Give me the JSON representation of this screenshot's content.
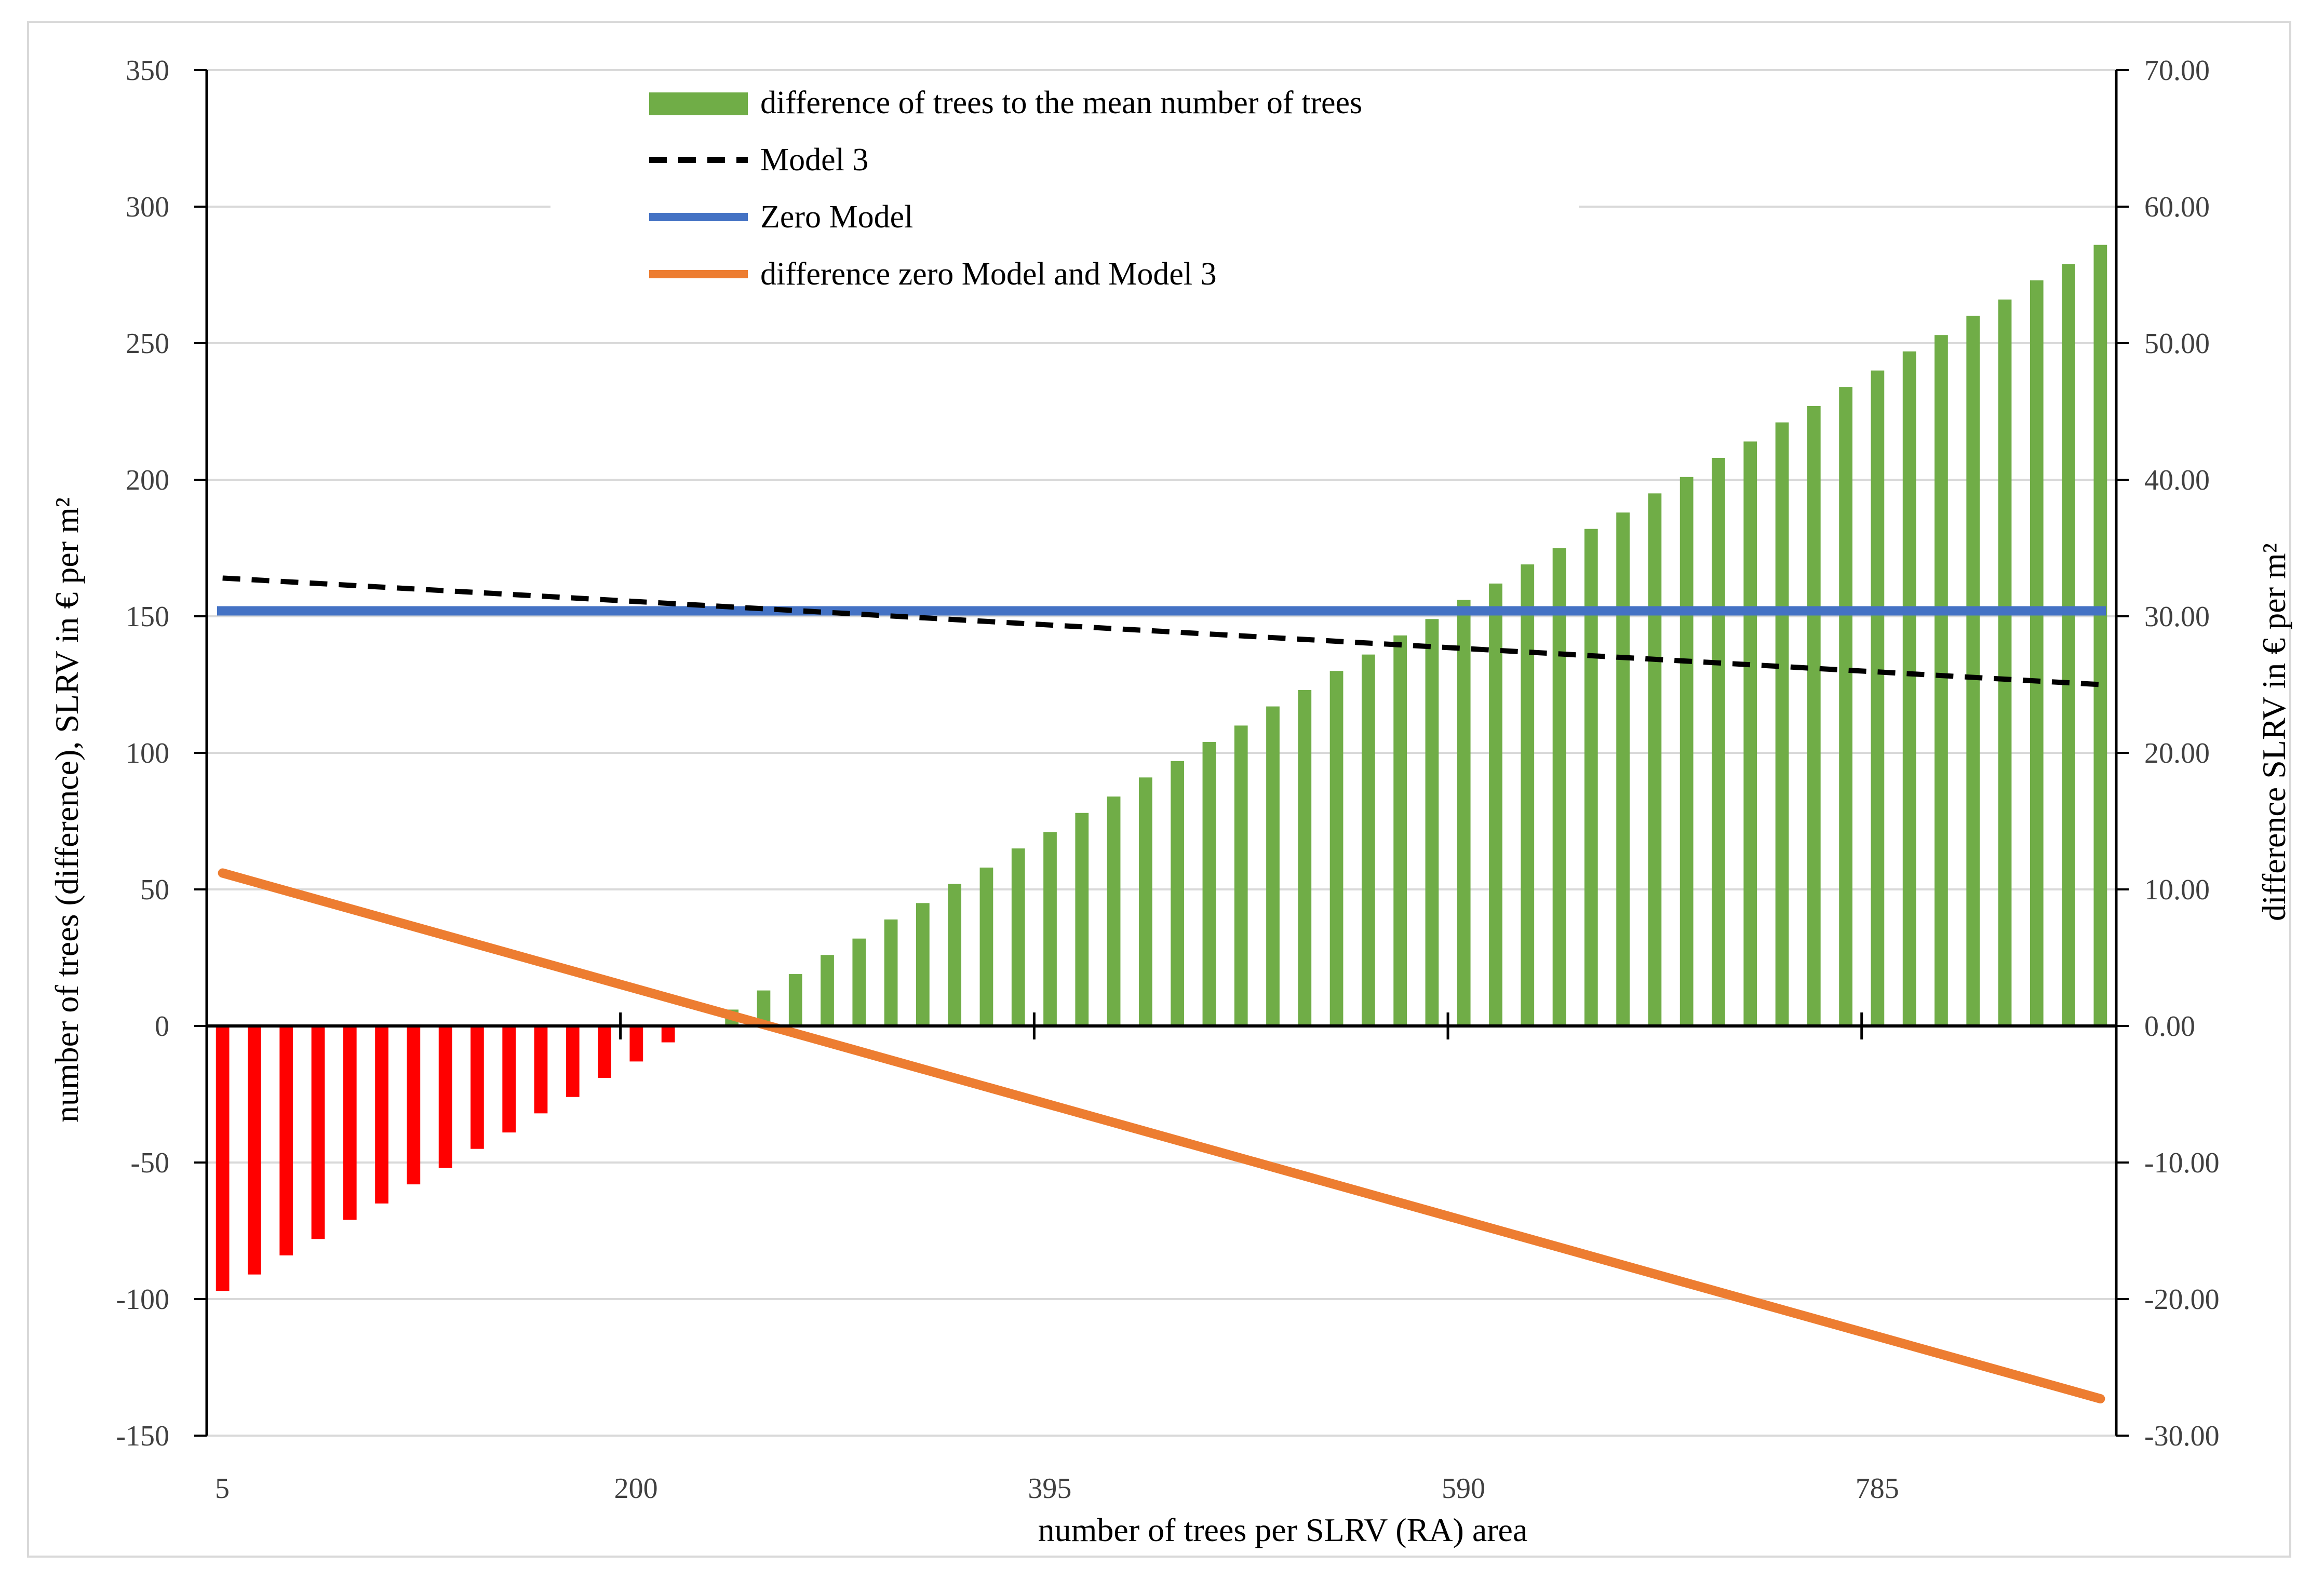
{
  "chart_data": {
    "type": "bar+line",
    "xlabel": "number of trees per SLRV (RA) area",
    "ylabel_left": "number of trees (difference), SLRV in € per m²",
    "ylabel_right": "difference SLRV in € per m²",
    "x_ticks": [
      "5",
      "200",
      "395",
      "590",
      "785"
    ],
    "y_left_ticks": [
      "-150",
      "-100",
      "-50",
      "0",
      "50",
      "100",
      "150",
      "200",
      "250",
      "300",
      "350"
    ],
    "y_right_ticks": [
      "-30.00",
      "-20.00",
      "-10.00",
      "0.00",
      "10.00",
      "20.00",
      "30.00",
      "40.00",
      "50.00",
      "60.00",
      "70.00"
    ],
    "ylim_left": [
      -150,
      350
    ],
    "ylim_right": [
      -30,
      70
    ],
    "x": [
      5,
      20,
      35,
      50,
      65,
      80,
      95,
      110,
      125,
      140,
      155,
      170,
      185,
      200,
      215,
      230,
      245,
      260,
      275,
      290,
      305,
      320,
      335,
      350,
      365,
      380,
      395,
      410,
      425,
      440,
      455,
      470,
      485,
      500,
      515,
      530,
      545,
      560,
      575,
      590,
      605,
      620,
      635,
      650,
      665,
      680,
      695,
      710,
      725,
      740,
      755,
      770,
      785,
      800,
      815,
      830,
      845,
      860,
      875,
      890
    ],
    "series": [
      {
        "name": "difference of trees to the mean number of trees",
        "type": "bar",
        "axis": "left",
        "color_positive": "#70ad47",
        "color_negative": "#ff0000",
        "values": [
          -97,
          -91,
          -84,
          -78,
          -71,
          -65,
          -58,
          -52,
          -45,
          -39,
          -32,
          -26,
          -19,
          -13,
          -6,
          0,
          6,
          13,
          19,
          26,
          32,
          39,
          45,
          52,
          58,
          65,
          71,
          78,
          84,
          91,
          97,
          104,
          110,
          117,
          123,
          130,
          136,
          143,
          149,
          156,
          162,
          169,
          175,
          182,
          188,
          195,
          201,
          208,
          214,
          221,
          227,
          234,
          240,
          247,
          253,
          260,
          266,
          273,
          279,
          286
        ]
      },
      {
        "name": "Model 3",
        "type": "line",
        "style": "dashed",
        "axis": "left",
        "color": "#000000",
        "x": [
          5,
          890
        ],
        "values": [
          164,
          125
        ]
      },
      {
        "name": "Zero Model",
        "type": "line",
        "axis": "left",
        "color": "#4472c4",
        "x": [
          5,
          890
        ],
        "values": [
          152,
          152
        ]
      },
      {
        "name": "difference zero Model and Model 3",
        "type": "line",
        "axis": "right",
        "color": "#ed7d31",
        "x": [
          5,
          890
        ],
        "values": [
          11.2,
          -27.3
        ]
      }
    ],
    "legend": [
      "difference of trees to the mean number of trees",
      "Model 3",
      "Zero Model",
      "difference zero Model and Model 3"
    ],
    "legend_position": "top-center",
    "grid": true
  }
}
